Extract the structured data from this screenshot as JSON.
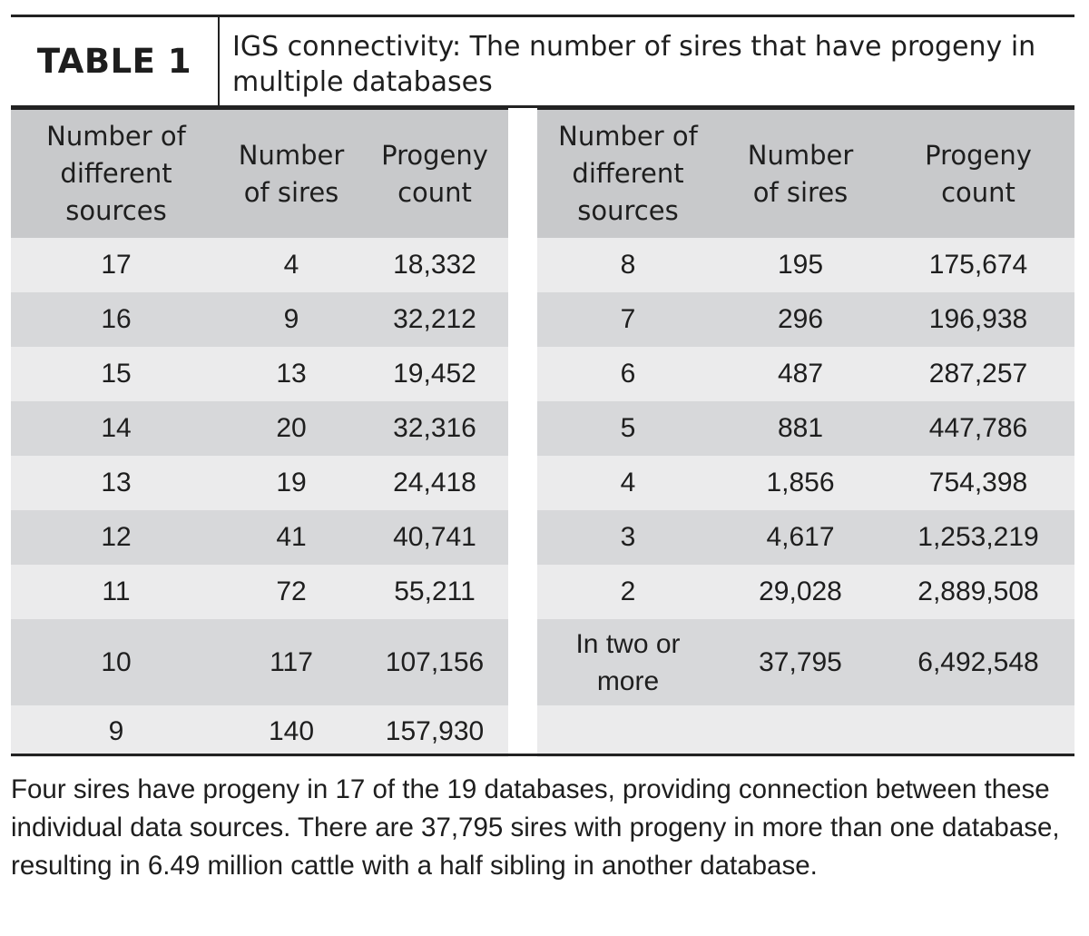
{
  "header": {
    "tag": "TABLE 1",
    "title": "IGS connectivity: The number of sires that have progeny in multiple databases"
  },
  "columns": {
    "sources": "Number of\ndifferent\nsources",
    "sires": "Number\nof sires",
    "progeny": "Progeny\ncount"
  },
  "left_rows": [
    {
      "sources": "17",
      "sires": "4",
      "progeny": "18,332"
    },
    {
      "sources": "16",
      "sires": "9",
      "progeny": "32,212"
    },
    {
      "sources": "15",
      "sires": "13",
      "progeny": "19,452"
    },
    {
      "sources": "14",
      "sires": "20",
      "progeny": "32,316"
    },
    {
      "sources": "13",
      "sires": "19",
      "progeny": "24,418"
    },
    {
      "sources": "12",
      "sires": "41",
      "progeny": "40,741"
    },
    {
      "sources": "11",
      "sires": "72",
      "progeny": "55,211"
    },
    {
      "sources": "10",
      "sires": "117",
      "progeny": "107,156"
    },
    {
      "sources": "9",
      "sires": "140",
      "progeny": "157,930"
    }
  ],
  "right_rows": [
    {
      "sources": "8",
      "sires": "195",
      "progeny": "175,674"
    },
    {
      "sources": "7",
      "sires": "296",
      "progeny": "196,938"
    },
    {
      "sources": "6",
      "sires": "487",
      "progeny": "287,257"
    },
    {
      "sources": "5",
      "sires": "881",
      "progeny": "447,786"
    },
    {
      "sources": "4",
      "sires": "1,856",
      "progeny": "754,398"
    },
    {
      "sources": "3",
      "sires": "4,617",
      "progeny": "1,253,219"
    },
    {
      "sources": "2",
      "sires": "29,028",
      "progeny": "2,889,508"
    },
    {
      "sources": "In two or\nmore",
      "sires": "37,795",
      "progeny": "6,492,548"
    },
    {
      "sources": "",
      "sires": "",
      "progeny": ""
    }
  ],
  "caption": "Four sires have progeny in 17 of the 19 databases, providing connection between these individual data sources. There are 37,795 sires with progeny in more than one database, resulting in 6.49 million cattle with a half sibling in another database."
}
